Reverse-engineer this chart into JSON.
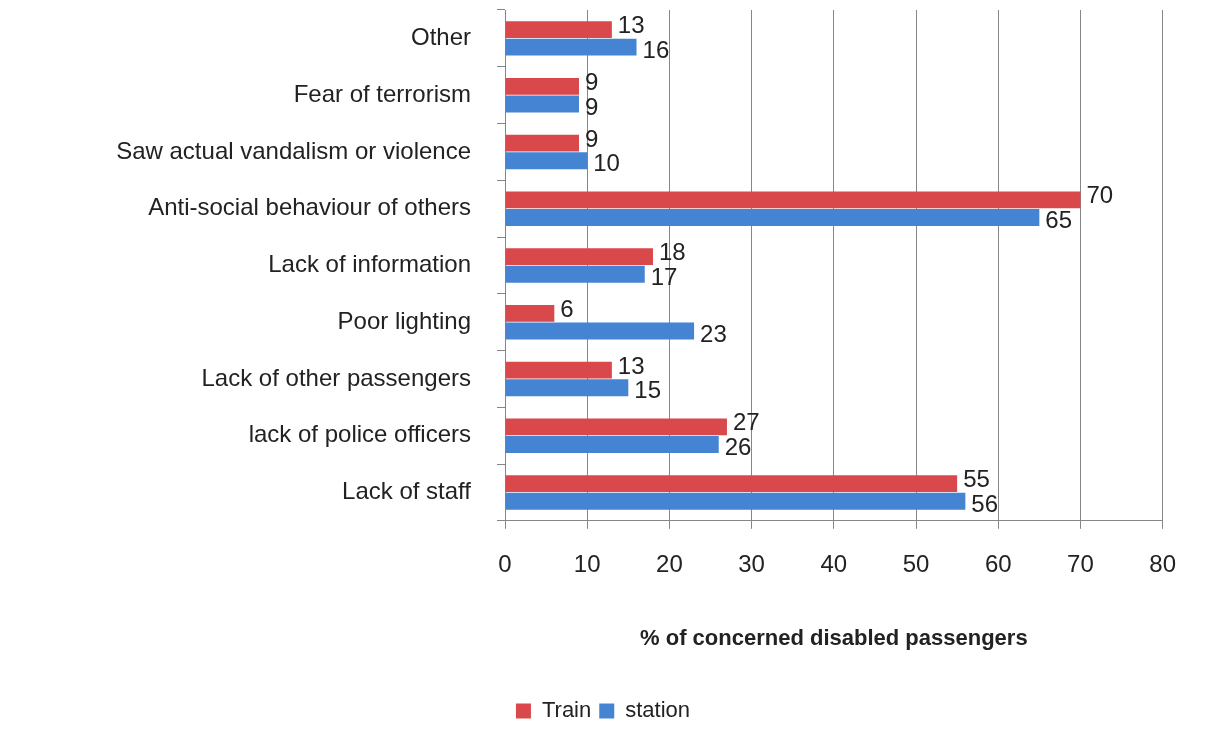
{
  "chart_data": {
    "type": "bar",
    "orientation": "horizontal",
    "categories": [
      "Other",
      "Fear of terrorism",
      "Saw actual vandalism or violence",
      "Anti-social behaviour of others",
      "Lack of information",
      "Poor lighting",
      "Lack of other passengers",
      "lack of police officers",
      "Lack of staff"
    ],
    "series": [
      {
        "name": "Train",
        "color": "#d9484a",
        "values": [
          13,
          9,
          9,
          70,
          18,
          6,
          13,
          27,
          55
        ]
      },
      {
        "name": "station",
        "color": "#4584d3",
        "values": [
          16,
          9,
          10,
          65,
          17,
          23,
          15,
          26,
          56
        ]
      }
    ],
    "xlabel": "% of concerned disabled passengers",
    "xlim": [
      0,
      80
    ],
    "xticks": [
      0,
      10,
      20,
      30,
      40,
      50,
      60,
      70,
      80
    ],
    "grid": "x",
    "legend": "bottom",
    "data_labels": true
  }
}
